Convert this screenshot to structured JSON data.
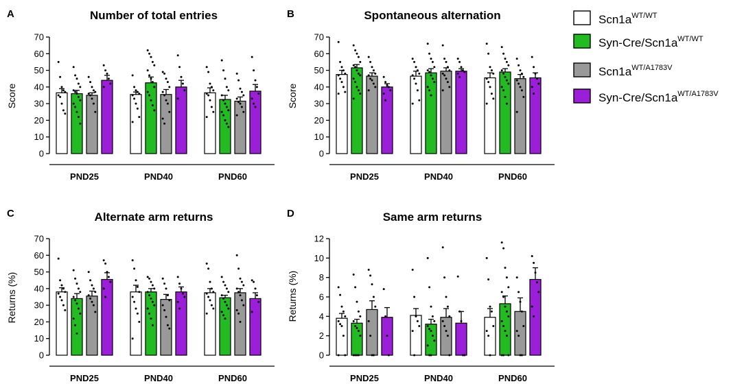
{
  "legend": [
    {
      "base": "Scn1a",
      "sup": "WT/WT",
      "color": "#ffffff"
    },
    {
      "base": "Syn-Cre/Scn1a",
      "sup": "WT/WT",
      "color": "#22bb22"
    },
    {
      "base": "Scn1a",
      "sup": "WT/A1783V",
      "color": "#999999"
    },
    {
      "base": "Syn-Cre/Scn1a",
      "sup": "WT/A1783V",
      "color": "#9b1fd9"
    }
  ],
  "chart_data": [
    {
      "letter": "A",
      "type": "bar",
      "title": "Number of total entries",
      "ylabel": "Score",
      "ylim": [
        0,
        70
      ],
      "yticks": [
        "0",
        "10",
        "20",
        "30",
        "40",
        "50",
        "60",
        "70"
      ],
      "groups": [
        "PND25",
        "PND40",
        "PND60"
      ],
      "series_names": [
        "Scn1a WT/WT",
        "Syn-Cre/Scn1a WT/WT",
        "Scn1a WT/A1783V",
        "Syn-Cre/Scn1a WT/A1783V"
      ],
      "means": [
        [
          36.5,
          36,
          35,
          44
        ],
        [
          35.5,
          42.5,
          35.5,
          40
        ],
        [
          36.5,
          32.5,
          31.5,
          37.5
        ]
      ],
      "sems": [
        [
          2.5,
          2,
          1.5,
          3
        ],
        [
          1.5,
          3.5,
          3,
          4
        ],
        [
          3,
          2.5,
          2.5,
          4
        ]
      ],
      "points": [
        [
          [
            55,
            46,
            40,
            38,
            37,
            35,
            34,
            30,
            26,
            24
          ],
          [
            52,
            47,
            45,
            42,
            40,
            38,
            37,
            36,
            34,
            32,
            30,
            28,
            25,
            22,
            18
          ],
          [
            46,
            43,
            40,
            38,
            37,
            36,
            35,
            33,
            30,
            25
          ],
          [
            53,
            50,
            48,
            45,
            42,
            40
          ]
        ],
        [
          [
            47,
            40,
            38,
            37,
            36,
            35,
            33,
            30,
            27,
            22,
            19
          ],
          [
            62,
            60,
            58,
            55,
            53,
            50,
            47,
            45,
            43,
            40,
            37,
            35,
            32,
            29,
            26
          ],
          [
            49,
            48,
            45,
            43,
            40,
            37,
            35,
            32,
            30,
            25,
            21,
            18
          ],
          [
            59,
            52,
            46,
            42,
            38,
            33
          ]
        ],
        [
          [
            52,
            49,
            42,
            40,
            38,
            36,
            35,
            32,
            28,
            25,
            22
          ],
          [
            56,
            50,
            45,
            40,
            38,
            35,
            32,
            30,
            28,
            26,
            25,
            23,
            20,
            18,
            16
          ],
          [
            48,
            44,
            39,
            37,
            35,
            33,
            31,
            30,
            28,
            25,
            23
          ],
          [
            58,
            50,
            44,
            40,
            36,
            33,
            30,
            28
          ]
        ]
      ]
    },
    {
      "letter": "B",
      "type": "bar",
      "title": "Spontaneous alternation",
      "ylabel": "Score",
      "ylim": [
        0,
        70
      ],
      "yticks": [
        "0",
        "10",
        "20",
        "30",
        "40",
        "50",
        "60",
        "70"
      ],
      "groups": [
        "PND25",
        "PND40",
        "PND60"
      ],
      "series_names": [
        "Scn1a WT/WT",
        "Syn-Cre/Scn1a WT/WT",
        "Scn1a WT/A1783V",
        "Syn-Cre/Scn1a WT/A1783V"
      ],
      "means": [
        [
          47.5,
          51.5,
          46.5,
          40
        ],
        [
          46.5,
          48.5,
          49.5,
          49.5
        ],
        [
          45.5,
          49,
          45,
          45.5
        ]
      ],
      "sems": [
        [
          2.5,
          2,
          2,
          2
        ],
        [
          3,
          2.5,
          2,
          1.5
        ],
        [
          3,
          2,
          2.5,
          3
        ]
      ],
      "points": [
        [
          [
            67,
            55,
            52,
            50,
            48,
            47,
            45,
            43,
            40,
            37,
            36
          ],
          [
            65,
            62,
            60,
            58,
            55,
            53,
            52,
            50,
            48,
            47,
            45,
            43,
            40,
            38,
            36,
            33
          ],
          [
            58,
            55,
            52,
            50,
            48,
            47,
            45,
            44,
            42,
            40,
            38
          ],
          [
            46,
            43,
            41,
            40,
            38,
            36,
            32
          ]
        ],
        [
          [
            57,
            55,
            52,
            50,
            48,
            47,
            45,
            42,
            38,
            32,
            30
          ],
          [
            66,
            60,
            57,
            55,
            52,
            50,
            49,
            47,
            45,
            43,
            40,
            38,
            35
          ],
          [
            65,
            57,
            55,
            52,
            50,
            48,
            47,
            45,
            43,
            40,
            38
          ],
          [
            57,
            55,
            52,
            50,
            49,
            48,
            46
          ]
        ],
        [
          [
            66,
            60,
            52,
            50,
            48,
            45,
            43,
            40,
            36,
            33,
            30
          ],
          [
            64,
            60,
            57,
            55,
            53,
            50,
            48,
            46,
            44,
            42,
            40,
            38,
            34,
            30
          ],
          [
            57,
            53,
            50,
            48,
            46,
            44,
            42,
            40,
            38,
            34,
            25
          ],
          [
            58,
            52,
            48,
            45,
            42,
            40,
            36
          ]
        ]
      ]
    },
    {
      "letter": "C",
      "type": "bar",
      "title": "Alternate arm returns",
      "ylabel": "Returns (%)",
      "ylim": [
        0,
        70
      ],
      "yticks": [
        "0",
        "10",
        "20",
        "30",
        "40",
        "50",
        "60",
        "70"
      ],
      "groups": [
        "PND25",
        "PND40",
        "PND60"
      ],
      "series_names": [
        "Scn1a WT/WT",
        "Syn-Cre/Scn1a WT/WT",
        "Scn1a WT/A1783V",
        "Syn-Cre/Scn1a WT/A1783V"
      ],
      "means": [
        [
          38,
          34,
          35.5,
          45.5
        ],
        [
          38,
          38,
          33.5,
          38
        ],
        [
          37.5,
          34.5,
          37.5,
          34
        ]
      ],
      "sems": [
        [
          2.5,
          3,
          3,
          4
        ],
        [
          4,
          2,
          3,
          3
        ],
        [
          2.5,
          1.5,
          2.5,
          3.5
        ]
      ],
      "points": [
        [
          [
            58,
            45,
            42,
            40,
            38,
            37,
            35,
            33,
            30,
            27
          ],
          [
            51,
            46,
            43,
            40,
            38,
            35,
            33,
            31,
            28,
            25,
            22,
            18,
            13
          ],
          [
            50,
            45,
            42,
            40,
            38,
            36,
            34,
            32,
            30,
            26
          ],
          [
            57,
            55,
            50,
            47,
            44,
            40,
            35
          ]
        ],
        [
          [
            57,
            52,
            45,
            41,
            38,
            35,
            32,
            28,
            25,
            20,
            10
          ],
          [
            47,
            46,
            44,
            42,
            40,
            38,
            36,
            34,
            32,
            30,
            28,
            25,
            22,
            18
          ],
          [
            46,
            43,
            40,
            36,
            33,
            30,
            27,
            23,
            18,
            16
          ],
          [
            47,
            43,
            40,
            37,
            35,
            32,
            28
          ]
        ],
        [
          [
            55,
            52,
            44,
            40,
            38,
            37,
            35,
            33,
            30,
            28,
            25
          ],
          [
            47,
            44,
            42,
            40,
            38,
            36,
            34,
            32,
            30,
            28,
            26,
            24,
            22
          ],
          [
            60,
            52,
            46,
            44,
            42,
            40,
            38,
            36,
            33,
            30,
            27,
            25,
            20
          ],
          [
            45,
            44,
            40,
            36,
            32,
            26
          ]
        ]
      ]
    },
    {
      "letter": "D",
      "type": "bar",
      "title": "Same arm returns",
      "ylabel": "Returns (%)",
      "ylim": [
        0,
        12
      ],
      "yticks": [
        "0",
        "2",
        "4",
        "6",
        "8",
        "10",
        "12"
      ],
      "groups": [
        "PND25",
        "PND40",
        "PND60"
      ],
      "series_names": [
        "Scn1a WT/WT",
        "Syn-Cre/Scn1a WT/WT",
        "Scn1a WT/A1783V",
        "Syn-Cre/Scn1a WT/A1783V"
      ],
      "means": [
        [
          3.8,
          3.3,
          4.7,
          3.9
        ],
        [
          4.1,
          3.2,
          3.9,
          3.3
        ],
        [
          3.9,
          5.3,
          4.5,
          7.8
        ]
      ],
      "sems": [
        [
          0.5,
          0.4,
          0.9,
          1.0
        ],
        [
          0.7,
          0.5,
          0.9,
          1.2
        ],
        [
          0.9,
          0.8,
          1.4,
          1.2
        ]
      ],
      "points": [
        [
          [
            7.0,
            6.2,
            5.0,
            4.5,
            4.0,
            3.5,
            3.2,
            3.0,
            2.0,
            0,
            0
          ],
          [
            8.3,
            7.0,
            5.5,
            4.5,
            4.0,
            3.5,
            3.0,
            2.8,
            2.5,
            2.0,
            0,
            0,
            0,
            0
          ],
          [
            8.8,
            8.2,
            7.3,
            6.0,
            5.0,
            3.5,
            2.0,
            0,
            0
          ],
          [
            6.8,
            4.0,
            2.0,
            0
          ]
        ],
        [
          [
            8.8,
            6.0,
            4.0,
            3.5,
            3.0,
            2.5,
            0
          ],
          [
            10.0,
            7.0,
            5.0,
            4.0,
            3.5,
            3.0,
            2.7,
            2.5,
            2.0,
            1.5,
            1.0,
            0,
            0
          ],
          [
            11.1,
            8.0,
            6.0,
            5.0,
            4.0,
            3.5,
            3.0,
            2.5,
            2.0,
            0
          ],
          [
            8.1,
            4.5,
            3.5,
            0,
            0
          ]
        ],
        [
          [
            10.0,
            7.8,
            5.0,
            4.5,
            3.0,
            2.5,
            2.0,
            0
          ],
          [
            11.6,
            11.0,
            9.0,
            8.0,
            7.0,
            6.5,
            6.0,
            5.0,
            4.5,
            4.0,
            3.5,
            3.0,
            2.5,
            2.0,
            0,
            0,
            0
          ],
          [
            8.0,
            6.5,
            5.5,
            4.5,
            3.0,
            2.5,
            2.0,
            0,
            0
          ],
          [
            10.2,
            9.5,
            8.5,
            7.5,
            6.5,
            5.0,
            4.0
          ]
        ]
      ]
    }
  ]
}
